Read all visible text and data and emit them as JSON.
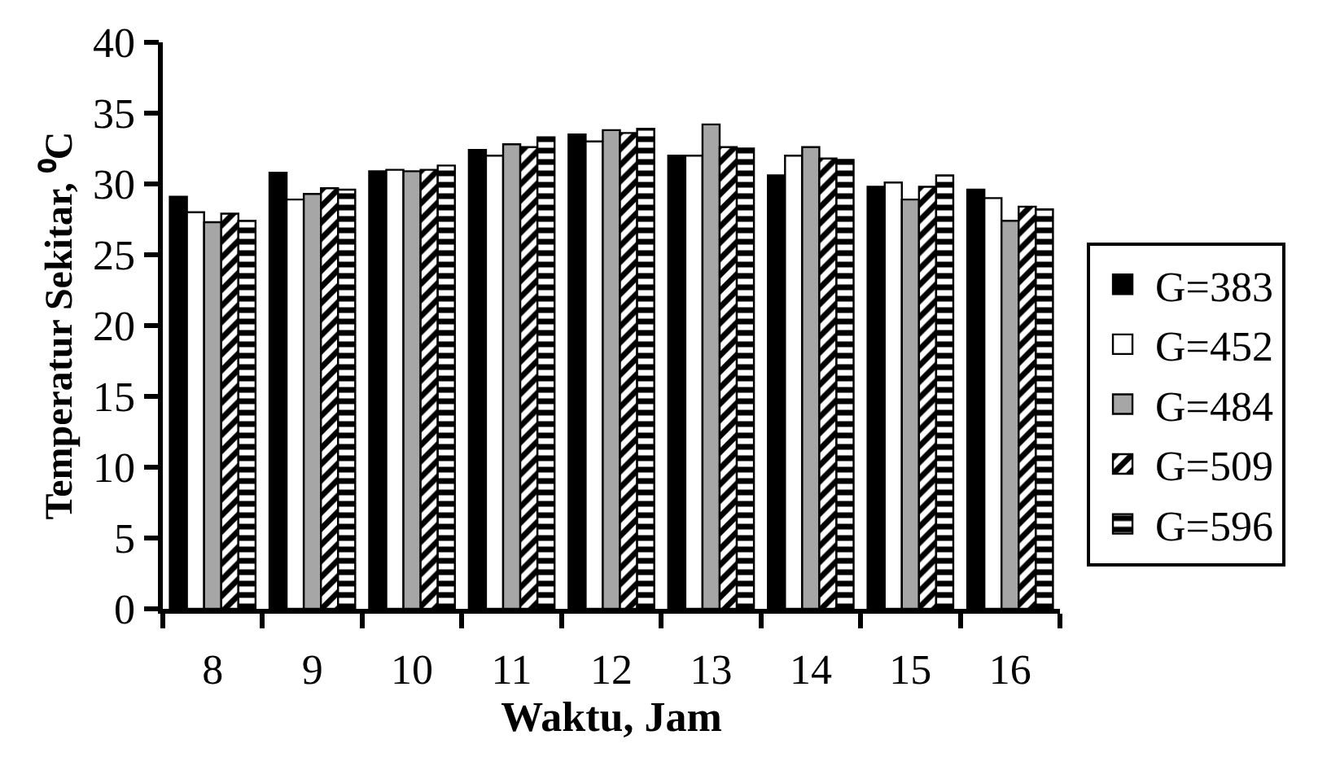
{
  "chart_data": {
    "type": "bar",
    "xlabel": "Waktu, Jam",
    "ylabel": "Temperatur Sekitar, ⁰C",
    "categories": [
      "8",
      "9",
      "10",
      "11",
      "12",
      "13",
      "14",
      "15",
      "16"
    ],
    "series": [
      {
        "name": "G=383",
        "color": "#000000",
        "values": [
          29.1,
          30.8,
          30.9,
          32.4,
          33.5,
          32.0,
          30.6,
          29.8,
          29.6
        ]
      },
      {
        "name": "G=452",
        "color": "#ffffff",
        "values": [
          28.0,
          28.9,
          31.0,
          32.0,
          33.0,
          32.0,
          32.0,
          30.1,
          29.0
        ]
      },
      {
        "name": "G=484",
        "color": "#a6a6a6",
        "values": [
          27.3,
          29.3,
          30.9,
          32.8,
          33.8,
          34.2,
          32.6,
          28.9,
          27.4
        ]
      },
      {
        "name": "G=509",
        "color": "#000000",
        "values": [
          27.9,
          29.7,
          31.0,
          32.6,
          33.6,
          32.6,
          31.8,
          29.8,
          28.4
        ]
      },
      {
        "name": "G=596",
        "color": "#000000",
        "values": [
          27.4,
          29.6,
          31.3,
          33.3,
          33.9,
          32.5,
          31.7,
          30.6,
          28.2
        ]
      }
    ],
    "ylim": [
      0,
      40
    ],
    "yticks": [
      0,
      5,
      10,
      15,
      20,
      25,
      30,
      35,
      40
    ],
    "grid": false,
    "legend": "right"
  }
}
